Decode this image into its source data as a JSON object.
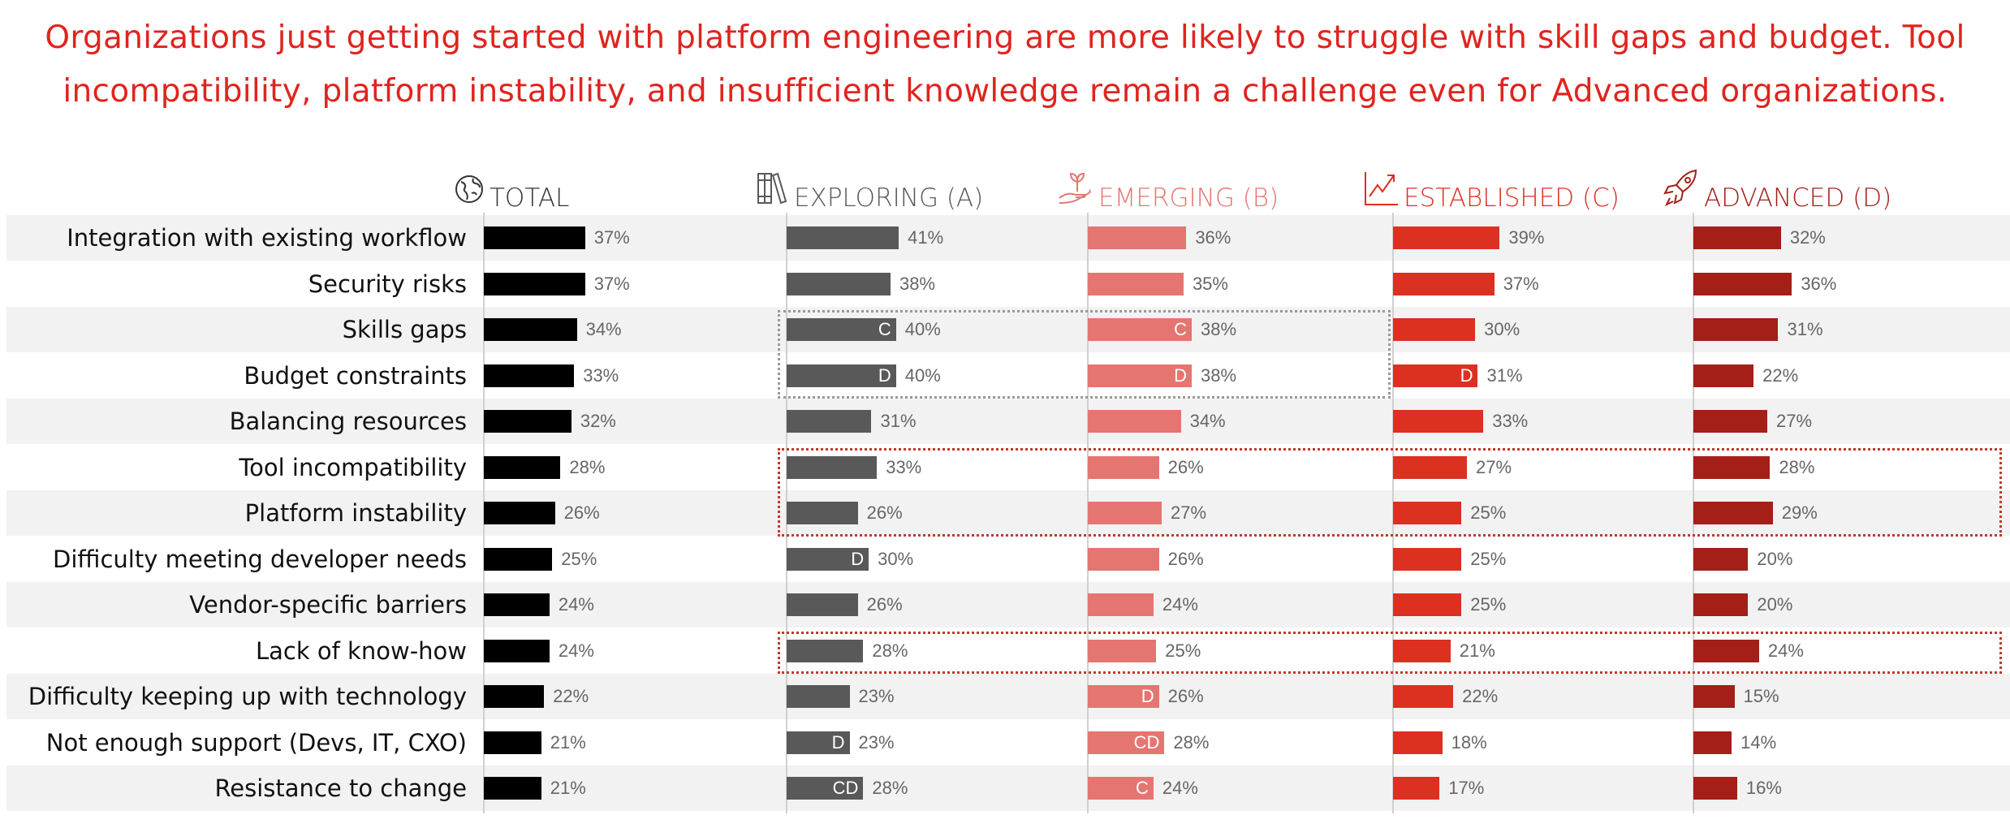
{
  "title_lines": [
    "Organizations just getting started with platform engineering are more likely to struggle with skill gaps and budget. Tool",
    "incompatibility, platform instability, and insufficient knowledge remain a challenge even for Advanced organizations."
  ],
  "chart_data": {
    "type": "bar",
    "orientation": "horizontal",
    "categories": [
      "Integration with existing workflow",
      "Security risks",
      "Skills gaps",
      "Budget constraints",
      "Balancing resources",
      "Tool incompatibility",
      "Platform instability",
      "Difficulty meeting developer needs",
      "Vendor-specific barriers",
      "Lack of know-how",
      "Difficulty keeping up with technology",
      "Not enough support (Devs, IT, CXO)",
      "Resistance to change"
    ],
    "unit": "%",
    "series": [
      {
        "name": "TOTAL",
        "icon": "globe-icon",
        "color": "#000000",
        "header_color": "#333333",
        "values": [
          37,
          37,
          34,
          33,
          32,
          28,
          26,
          25,
          24,
          24,
          22,
          21,
          21
        ],
        "markers": [
          "",
          "",
          "",
          "",
          "",
          "",
          "",
          "",
          "",
          "",
          "",
          "",
          ""
        ]
      },
      {
        "name": "EXPLORING (A)",
        "icon": "books-icon",
        "color": "#595959",
        "header_color": "#595959",
        "values": [
          41,
          38,
          40,
          40,
          31,
          33,
          26,
          30,
          26,
          28,
          23,
          23,
          28
        ],
        "markers": [
          "",
          "",
          "C",
          "D",
          "",
          "",
          "",
          "D",
          "",
          "",
          "",
          "D",
          "CD"
        ]
      },
      {
        "name": "EMERGING (B)",
        "icon": "plant-hand-icon",
        "color": "#e57570",
        "header_color": "#e57570",
        "values": [
          36,
          35,
          38,
          38,
          34,
          26,
          27,
          26,
          24,
          25,
          26,
          28,
          24
        ],
        "markers": [
          "",
          "",
          "C",
          "D",
          "",
          "",
          "",
          "",
          "",
          "",
          "D",
          "CD",
          "C"
        ]
      },
      {
        "name": "ESTABLISHED (C)",
        "icon": "growth-chart-icon",
        "color": "#dc3021",
        "header_color": "#dc3021",
        "values": [
          39,
          37,
          30,
          31,
          33,
          27,
          25,
          25,
          25,
          21,
          22,
          18,
          17
        ],
        "markers": [
          "",
          "",
          "",
          "D",
          "",
          "",
          "",
          "",
          "",
          "",
          "",
          "",
          ""
        ]
      },
      {
        "name": "ADVANCED (D)",
        "icon": "rocket-icon",
        "color": "#a31f18",
        "header_color": "#a31f18",
        "values": [
          32,
          36,
          31,
          22,
          27,
          28,
          29,
          20,
          20,
          24,
          15,
          14,
          16
        ],
        "markers": [
          "",
          "",
          "",
          "",
          "",
          "",
          "",
          "",
          "",
          "",
          "",
          "",
          ""
        ]
      }
    ],
    "highlights": [
      {
        "rows": [
          2,
          3
        ],
        "columns": [
          "EXPLORING (A)",
          "EMERGING (B)"
        ],
        "color": "#999999"
      },
      {
        "rows": [
          5,
          6
        ],
        "columns": [
          "EXPLORING (A)",
          "EMERGING (B)",
          "ESTABLISHED (C)",
          "ADVANCED (D)"
        ],
        "color": "#c0392b"
      },
      {
        "rows": [
          9
        ],
        "columns": [
          "EXPLORING (A)",
          "EMERGING (B)",
          "ESTABLISHED (C)",
          "ADVANCED (D)"
        ],
        "color": "#c0392b"
      }
    ],
    "grid": false
  }
}
